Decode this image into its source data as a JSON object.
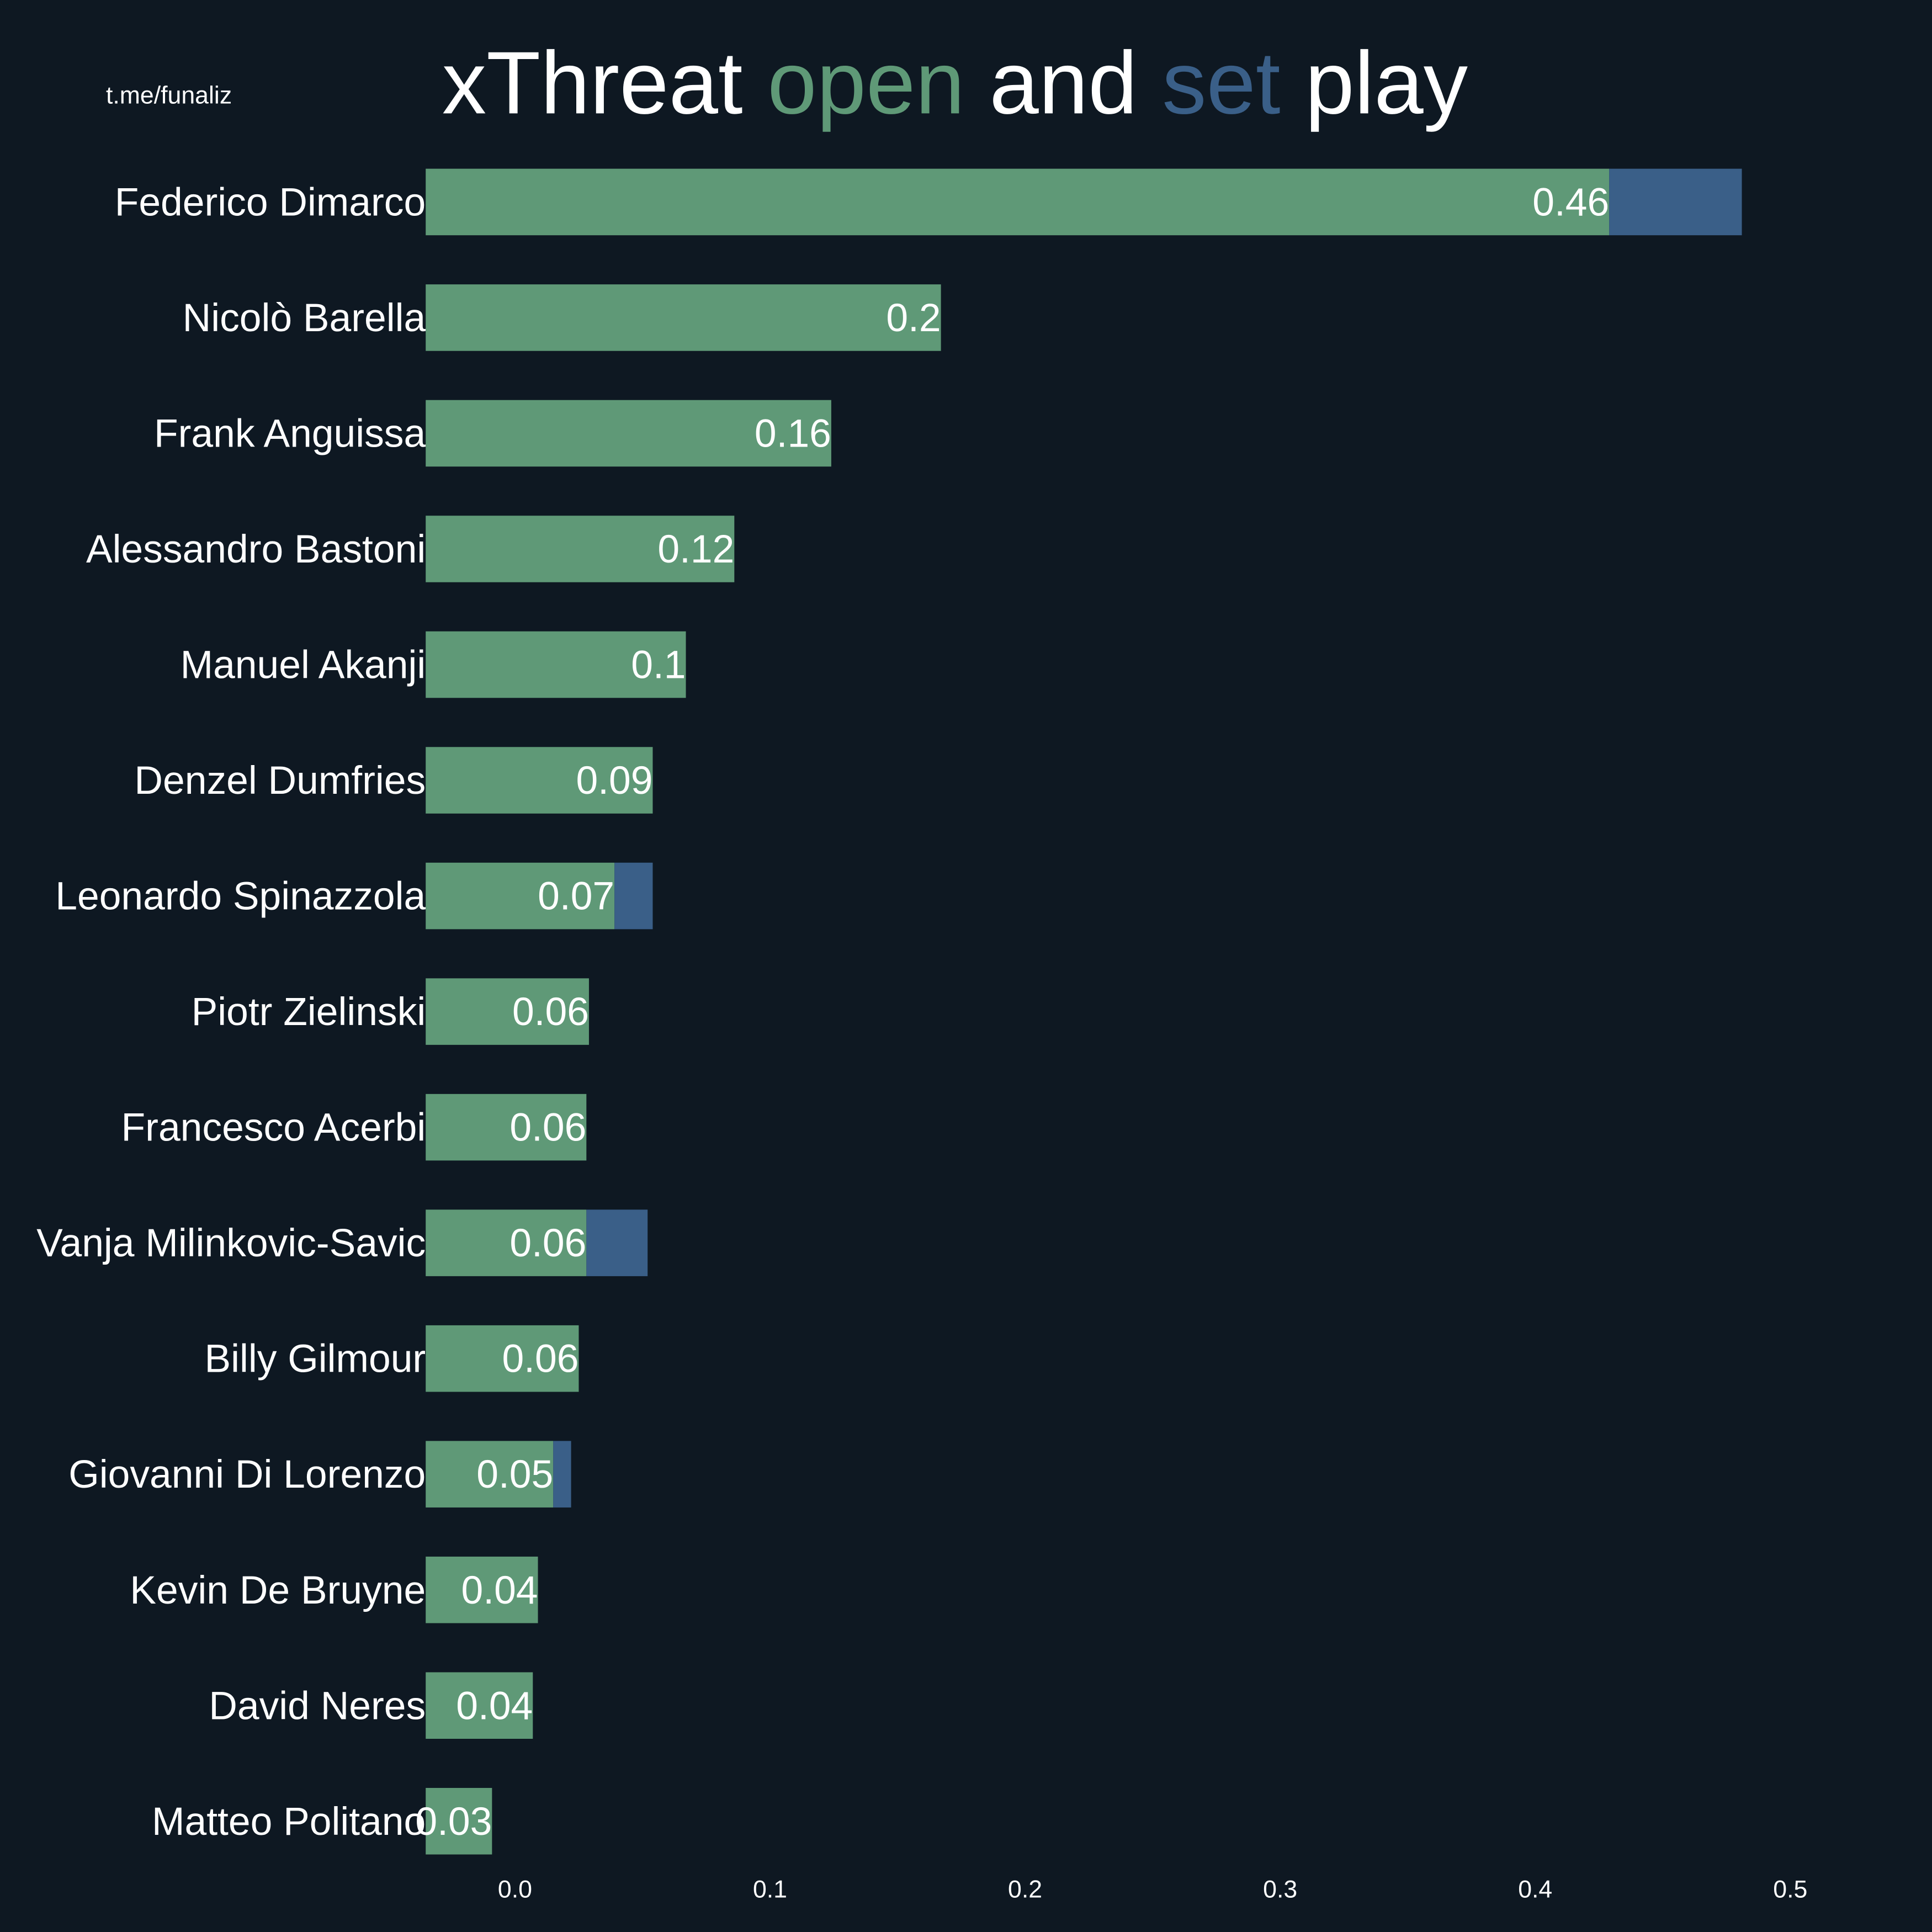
{
  "chart_data": {
    "type": "stacked_barh",
    "title": [
      "xThreat",
      "and",
      "play"
    ],
    "watermark": "t.me/funaliz",
    "categories": [
      "Federico Dimarco",
      "Nicolò Barella",
      "Frank Anguissa",
      "Alessandro Bastoni",
      "Manuel Akanji",
      "Denzel Dumfries",
      "Leonardo Spinazzola",
      "Piotr Zielinski",
      "Francesco Acerbi",
      "Vanja Milinkovic-Savic",
      "Billy Gilmour",
      "Giovanni Di Lorenzo",
      "Kevin De Bruyne",
      "David Neres",
      "Matteo Politano"
    ],
    "series": [
      {
        "name": "open",
        "color": "#5f9977",
        "values": [
          0.464,
          0.202,
          0.159,
          0.121,
          0.102,
          0.089,
          0.074,
          0.064,
          0.063,
          0.063,
          0.06,
          0.05,
          0.044,
          0.042,
          0.026
        ],
        "value_labels": [
          "0.46",
          "0.2",
          "0.16",
          "0.12",
          "0.1",
          "0.09",
          "0.07",
          "0.06",
          "0.06",
          "0.06",
          "0.06",
          "0.05",
          "0.04",
          "0.04",
          "0.03"
        ]
      },
      {
        "name": "set",
        "color": "#3a5f88",
        "values": [
          0.052,
          0,
          0,
          0,
          0,
          0,
          0.015,
          0,
          0,
          0.024,
          0,
          0.007,
          0,
          0,
          0
        ]
      }
    ],
    "xlim": [
      -0.035,
      0.54
    ],
    "xticks": [
      {
        "value": 0,
        "label": "0.0"
      },
      0.1,
      0.2,
      0.3,
      0.4,
      0.5
    ],
    "background": "#0e1822"
  }
}
